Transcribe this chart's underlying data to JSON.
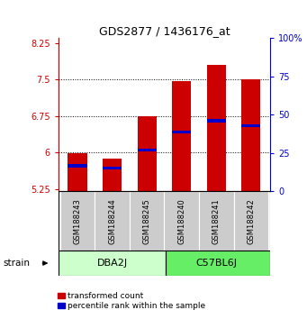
{
  "title": "GDS2877 / 1436176_at",
  "samples": [
    "GSM188243",
    "GSM188244",
    "GSM188245",
    "GSM188240",
    "GSM188241",
    "GSM188242"
  ],
  "group_labels": [
    "DBA2J",
    "C57BL6J"
  ],
  "group_colors": [
    "#ccffcc",
    "#66ee66"
  ],
  "bar_bottom": 5.2,
  "transformed_counts": [
    5.98,
    5.87,
    6.75,
    7.47,
    7.8,
    7.5
  ],
  "percentile_values": [
    5.73,
    5.68,
    6.05,
    6.42,
    6.65,
    6.55
  ],
  "ylim_left": [
    5.2,
    8.35
  ],
  "ylim_right": [
    0,
    100
  ],
  "yticks_left": [
    5.25,
    6.0,
    6.75,
    7.5,
    8.25
  ],
  "ytick_labels_left": [
    "5.25",
    "6",
    "6.75",
    "7.5",
    "8.25"
  ],
  "yticks_right": [
    0,
    25,
    50,
    75,
    100
  ],
  "ytick_labels_right": [
    "0",
    "25",
    "50",
    "75",
    "100%"
  ],
  "bar_color": "#cc0000",
  "percentile_color": "#0000cc",
  "bar_width": 0.55,
  "grid_ticks": [
    6.0,
    6.75,
    7.5
  ],
  "sample_area_color": "#cccccc",
  "left_axis_color": "#cc0000",
  "right_axis_color": "#0000cc",
  "title_fontsize": 9,
  "tick_fontsize": 7,
  "sample_fontsize": 6,
  "legend_fontsize": 6.5,
  "group_fontsize": 8
}
